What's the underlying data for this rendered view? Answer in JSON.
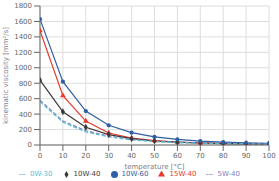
{
  "chart_data": {
    "type": "line",
    "xlabel": "temperature [°C]",
    "ylabel": "kinematic viscosity [mm²/s]",
    "x": [
      0,
      10,
      20,
      30,
      40,
      50,
      60,
      70,
      80,
      90,
      100
    ],
    "xlim": [
      0,
      100
    ],
    "ylim": [
      0,
      1800
    ],
    "xticks": [
      0,
      10,
      20,
      30,
      40,
      50,
      60,
      70,
      80,
      90,
      100
    ],
    "yticks": [
      0,
      200,
      400,
      600,
      800,
      1000,
      1200,
      1400,
      1600,
      1800
    ],
    "grid": true,
    "legend": "bottom",
    "series": [
      {
        "name": "15W-40",
        "color": "#e8392a",
        "marker": "triangle",
        "line_style": "solid",
        "values": [
          1480,
          640,
          310,
          155,
          90,
          57,
          38,
          27,
          20,
          15,
          12
        ]
      },
      {
        "name": "10W-40",
        "color": "#3a3a3a",
        "marker": "diamond",
        "line_style": "solid",
        "values": [
          840,
          430,
          230,
          135,
          82,
          52,
          36,
          26,
          19,
          15,
          12
        ]
      },
      {
        "name": "10W-60",
        "color": "#2e5fa3",
        "marker": "circle",
        "line_style": "solid",
        "values": [
          1630,
          820,
          440,
          255,
          160,
          105,
          72,
          51,
          38,
          29,
          22
        ]
      },
      {
        "name": "5W-40",
        "color": "#8080c0",
        "marker": "none",
        "line_style": "dashed",
        "values": [
          580,
          310,
          185,
          115,
          73,
          48,
          34,
          25,
          19,
          14,
          11
        ]
      },
      {
        "name": "0W-30",
        "color": "#5bbcd4",
        "marker": "none",
        "line_style": "dashed",
        "values": [
          560,
          295,
          170,
          105,
          67,
          44,
          31,
          22,
          17,
          13,
          10
        ]
      }
    ]
  }
}
